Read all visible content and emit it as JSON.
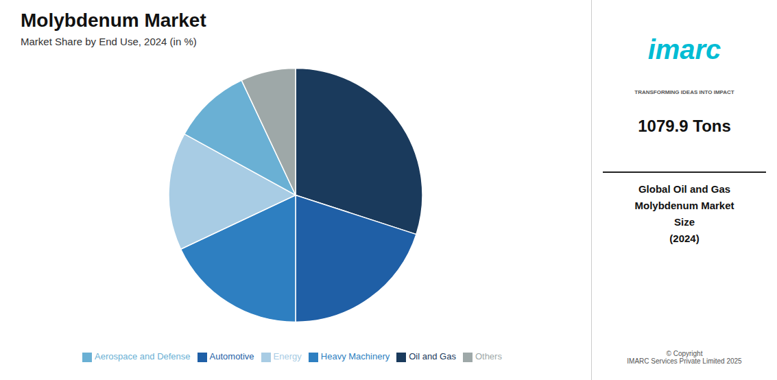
{
  "chart_data": {
    "type": "pie",
    "title": "Molybdenum Market",
    "subtitle": "Market Share by End Use, 2024 (in %)",
    "categories": [
      "Oil and Gas",
      "Automotive",
      "Heavy Machinery",
      "Energy",
      "Aerospace and Defense",
      "Others"
    ],
    "values": [
      30.0,
      20.0,
      18.0,
      15.0,
      10.0,
      7.0
    ],
    "colors": [
      "#1a3a5c",
      "#1f5fa6",
      "#2e7fc1",
      "#a8cce4",
      "#6ab0d4",
      "#9ea8a8"
    ],
    "legend": "bottom",
    "annotations": [
      "imarc",
      "TRANSFORMING IDEAS INTO IMPACT",
      "1079.9 Tons",
      "Global Oil and Gas\nMolybdenum Market\nSize\n(2024)",
      "© Copyright\nIMARC Services Private Limited 2025"
    ]
  }
}
